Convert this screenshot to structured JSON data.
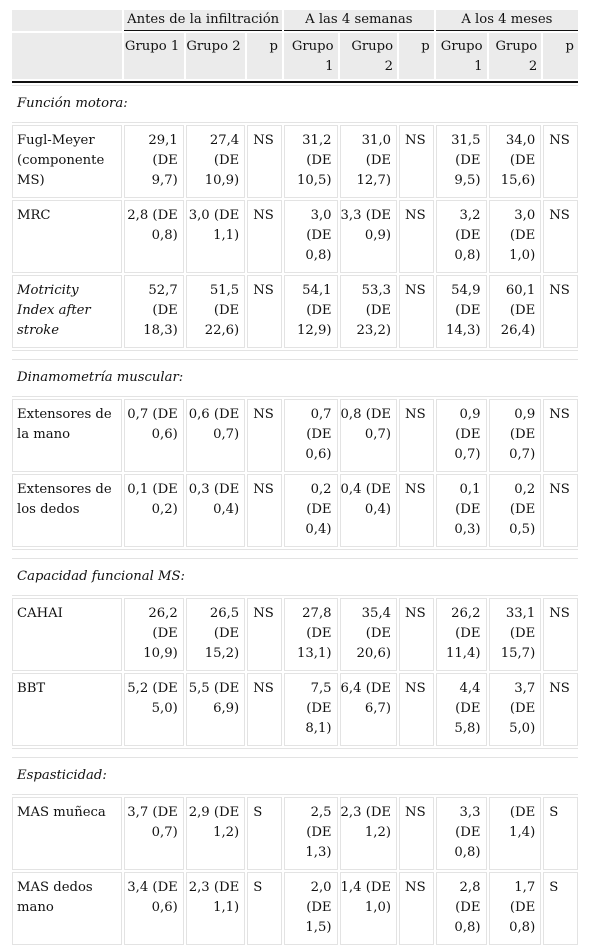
{
  "header": {
    "periods": [
      "Antes de la infiltración",
      "A las 4 semanas",
      "A los 4 meses"
    ],
    "columns": [
      "Grupo 1",
      "Grupo 2",
      "p",
      "Grupo 1",
      "Grupo 2",
      "p",
      "Grupo 1",
      "Grupo 2",
      "p"
    ]
  },
  "sections": [
    {
      "title": "Función motora:",
      "rows": [
        {
          "label": "Fugl-Meyer (componente MS)",
          "cells": [
            "29,1 (DE 9,7)",
            "27,4 (DE 10,9)",
            "NS",
            "31,2 (DE 10,5)",
            "31,0 (DE 12,7)",
            "NS",
            "31,5 (DE 9,5)",
            "34,0 (DE 15,6)",
            "NS"
          ]
        },
        {
          "label": "MRC",
          "cells": [
            "2,8 (DE 0,8)",
            "3,0 (DE 1,1)",
            "NS",
            "3,0 (DE 0,8)",
            "3,3 (DE 0,9)",
            "NS",
            "3,2 (DE 0,8)",
            "3,0 (DE 1,0)",
            "NS"
          ]
        },
        {
          "label": "Motricity Index after stroke",
          "italic": true,
          "cells": [
            "52,7 (DE 18,3)",
            "51,5 (DE 22,6)",
            "NS",
            "54,1 (DE 12,9)",
            "53,3 (DE 23,2)",
            "NS",
            "54,9 (DE 14,3)",
            "60,1 (DE 26,4)",
            "NS"
          ]
        }
      ]
    },
    {
      "title": "Dinamometría muscular:",
      "rows": [
        {
          "label": "Extensores de la mano",
          "cells": [
            "0,7 (DE 0,6)",
            "0,6 (DE 0,7)",
            "NS",
            "0,7 (DE 0,6)",
            "0,8 (DE 0,7)",
            "NS",
            "0,9 (DE 0,7)",
            "0,9 (DE 0,7)",
            "NS"
          ]
        },
        {
          "label": "Extensores de los dedos",
          "cells": [
            "0,1 (DE 0,2)",
            "0,3 (DE 0,4)",
            "NS",
            "0,2 (DE 0,4)",
            "0,4 (DE 0,4)",
            "NS",
            "0,1 (DE 0,3)",
            "0,2 (DE 0,5)",
            "NS"
          ]
        }
      ]
    },
    {
      "title": "Capacidad funcional MS:",
      "rows": [
        {
          "label": "CAHAI",
          "cells": [
            "26,2 (DE 10,9)",
            "26,5 (DE 15,2)",
            "NS",
            "27,8 (DE 13,1)",
            "35,4 (DE 20,6)",
            "NS",
            "26,2 (DE 11,4)",
            "33,1 (DE 15,7)",
            "NS"
          ]
        },
        {
          "label": "BBT",
          "cells": [
            "5,2 (DE 5,0)",
            "5,5 (DE 6,9)",
            "NS",
            "7,5 (DE 8,1)",
            "6,4 (DE 6,7)",
            "NS",
            "4,4 (DE 5,8)",
            "3,7 (DE 5,0)",
            "NS"
          ]
        }
      ]
    },
    {
      "title": "Espasticidad:",
      "rows": [
        {
          "label": "MAS muñeca",
          "cells": [
            "3,7 (DE 0,7)",
            "2,9 (DE 1,2)",
            "S",
            "2,5 (DE 1,3)",
            "2,3 (DE 1,2)",
            "NS",
            "3,3 (DE 0,8)",
            "(DE 1,4)",
            "S"
          ]
        },
        {
          "label": "MAS dedos mano",
          "cells": [
            "3,4 (DE 0,6)",
            "2,3 (DE 1,1)",
            "S",
            "2,0 (DE 1,5)",
            "1,4 (DE 1,0)",
            "NS",
            "2,8 (DE 0,8)",
            "1,7 (DE 0,8)",
            "S"
          ]
        }
      ]
    }
  ]
}
